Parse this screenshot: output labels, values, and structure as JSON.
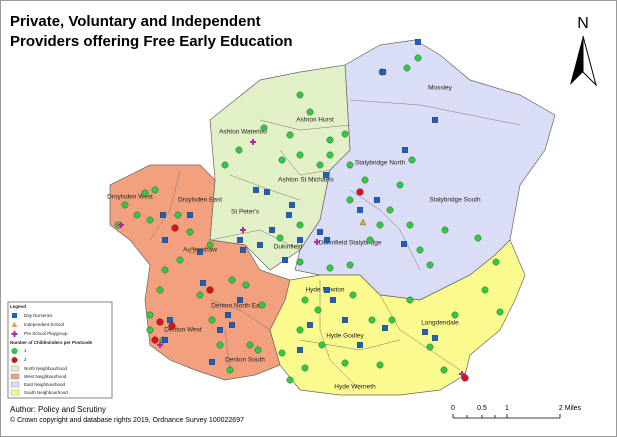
{
  "header": {
    "title_lines": [
      "Private, Voluntary and Independent",
      "Providers offering Free Early Education"
    ]
  },
  "north": "N",
  "wards": [
    "Mossley",
    "Ashton Hurst",
    "Ashton Waterloo",
    "Stalybridge North",
    "Ashton St Michaels",
    "Droylsden East",
    "Droylsden West",
    "St Peter's",
    "Stalybridge South",
    "Audenshaw",
    "Dukinfield",
    "Dukinfield Stalybridge",
    "Denton North East",
    "Hyde Newton",
    "Longdendale",
    "Denton West",
    "Hyde Godley",
    "Denton South",
    "Hyde Werneth"
  ],
  "legend": {
    "title": "Legend",
    "items": [
      "Day Nurseries",
      "Independent School",
      "Pre School Playgroup"
    ],
    "childminders_title": "Number of Childminders per Postcode",
    "childminder_counts": [
      "1",
      "2"
    ],
    "areas": [
      "North Neighbourhood",
      "West Neighbourhood",
      "East Neighbourhood",
      "South Neighbourhood"
    ]
  },
  "scale": [
    "0",
    "0.5",
    "1",
    "2 Miles"
  ],
  "footer": [
    "Author: Policy and Scrutiny",
    "© Crown copyright and database rights 2019, Ordnance Survey 100022697"
  ]
}
